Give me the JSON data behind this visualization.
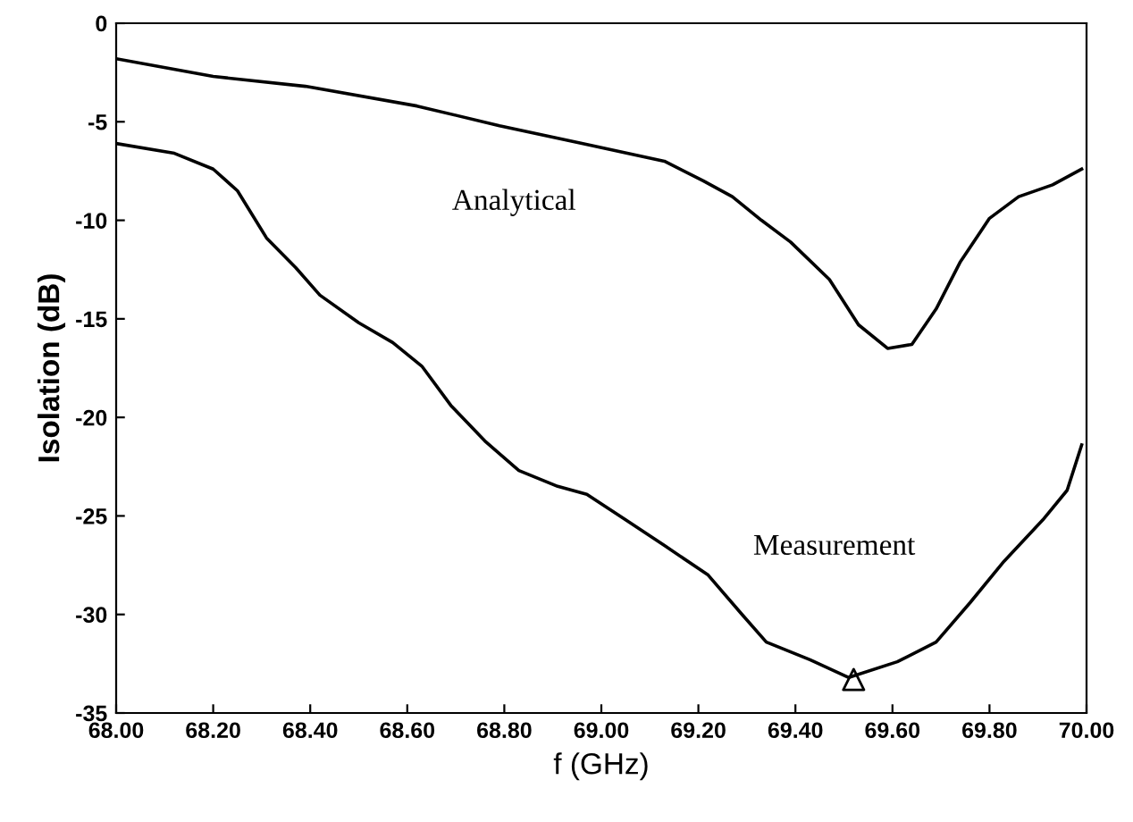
{
  "chart_data": {
    "type": "line",
    "xlabel": "f (GHz)",
    "ylabel": "Isolation (dB)",
    "xlim": [
      68.0,
      70.0
    ],
    "ylim": [
      -35,
      0
    ],
    "xticks": [
      {
        "value": 68.0,
        "label": "68.00"
      },
      {
        "value": 68.2,
        "label": "68.20"
      },
      {
        "value": 68.4,
        "label": "68.40"
      },
      {
        "value": 68.6,
        "label": "68.60"
      },
      {
        "value": 68.8,
        "label": "68.80"
      },
      {
        "value": 69.0,
        "label": "69.00"
      },
      {
        "value": 69.2,
        "label": "69.20"
      },
      {
        "value": 69.4,
        "label": "69.40"
      },
      {
        "value": 69.6,
        "label": "69.60"
      },
      {
        "value": 69.8,
        "label": "69.80"
      },
      {
        "value": 70.0,
        "label": "70.00"
      }
    ],
    "yticks": [
      0,
      -5,
      -10,
      -15,
      -20,
      -25,
      -30,
      -35
    ],
    "grid": false,
    "legend": false,
    "marker": "none",
    "line_style": "solid",
    "series": [
      {
        "name": "Analytical",
        "color": "#000000",
        "x": [
          68.0,
          68.2,
          68.39,
          68.62,
          68.79,
          68.96,
          69.13,
          69.21,
          69.27,
          69.33,
          69.39,
          69.47,
          69.53,
          69.59,
          69.64,
          69.69,
          69.74,
          69.8,
          69.86,
          69.93,
          69.99
        ],
        "values": [
          -1.8,
          -2.7,
          -3.2,
          -4.2,
          -5.2,
          -6.1,
          -7.0,
          -8.0,
          -8.8,
          -10.0,
          -11.1,
          -13.0,
          -15.3,
          -16.5,
          -16.3,
          -14.5,
          -12.1,
          -9.9,
          -8.8,
          -8.2,
          -7.4
        ]
      },
      {
        "name": "Measurement",
        "color": "#000000",
        "x": [
          68.0,
          68.12,
          68.2,
          68.25,
          68.31,
          68.37,
          68.42,
          68.5,
          68.57,
          68.63,
          68.69,
          68.76,
          68.83,
          68.91,
          68.97,
          69.05,
          69.13,
          69.22,
          69.29,
          69.34,
          69.43,
          69.51,
          69.61,
          69.69,
          69.76,
          69.83,
          69.91,
          69.96,
          69.99
        ],
        "values": [
          -6.1,
          -6.6,
          -7.4,
          -8.5,
          -10.9,
          -12.4,
          -13.8,
          -15.2,
          -16.2,
          -17.4,
          -19.4,
          -21.2,
          -22.7,
          -23.5,
          -23.9,
          -25.2,
          -26.5,
          -28.0,
          -30.0,
          -31.4,
          -32.3,
          -33.2,
          -32.4,
          -31.4,
          -29.4,
          -27.3,
          -25.2,
          -23.7,
          -21.4
        ]
      },
      {
        "type": "scatter",
        "marker": "triangle",
        "color": "#000000",
        "x": [
          69.52
        ],
        "values": [
          -33.3
        ]
      }
    ]
  }
}
